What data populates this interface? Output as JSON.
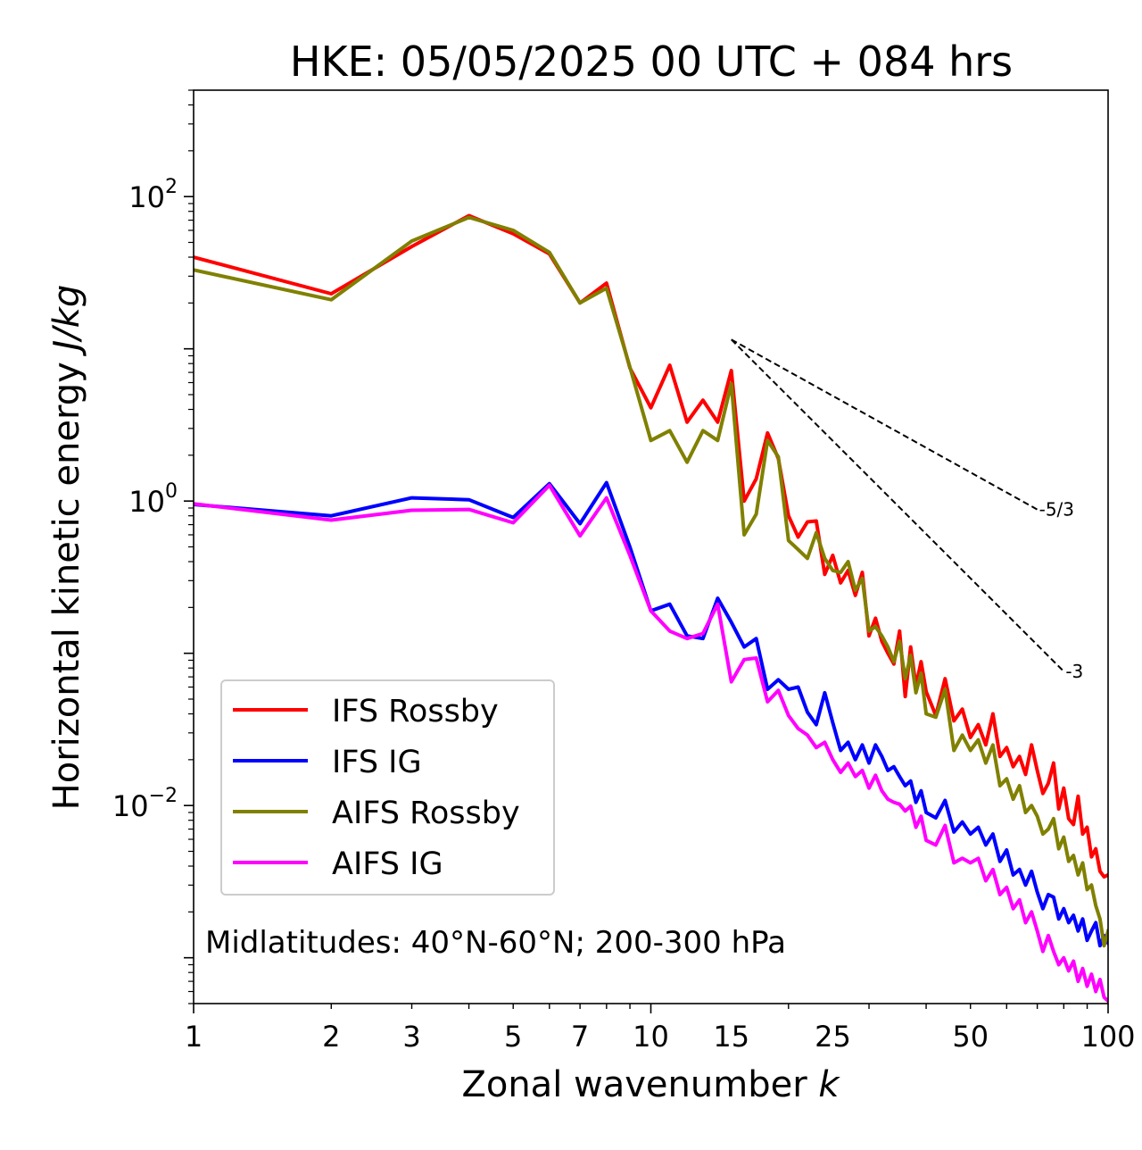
{
  "chart_data": {
    "type": "line",
    "title": "HKE: 05/05/2025 00 UTC + 084 hrs",
    "xlabel": "Zonal wavenumber",
    "xlabel_var": "k",
    "ylabel": "Horizontal kinetic energy",
    "ylabel_unit": "J/kg",
    "x_scale": "log",
    "y_scale": "log",
    "xlim": [
      1,
      100
    ],
    "ylim": [
      0.0005,
      500
    ],
    "x_ticks": [
      1,
      2,
      3,
      5,
      7,
      10,
      15,
      25,
      50,
      100
    ],
    "x_tick_labels": [
      "1",
      "2",
      "3",
      "5",
      "7",
      "10",
      "15",
      "25",
      "50",
      "100"
    ],
    "y_ticks": [
      0.01,
      1,
      100
    ],
    "y_tick_labels": [
      {
        "base": "10",
        "exp": "−2"
      },
      {
        "base": "10",
        "exp": "0"
      },
      {
        "base": "10",
        "exp": "2"
      }
    ],
    "grid": false,
    "legend_position": "lower-left",
    "annotation": "Midlatitudes: 40°N-60°N; 200-300 hPa",
    "reference_slopes": [
      {
        "label": "-5/3",
        "exponent": -1.6667,
        "x": [
          15,
          70
        ],
        "y": [
          11.5,
          0.88
        ]
      },
      {
        "label": "-3",
        "exponent": -3,
        "x": [
          15,
          80
        ],
        "y": [
          11.5,
          0.076
        ]
      }
    ],
    "series": [
      {
        "name": "IFS Rossby",
        "color": "#ff0000",
        "points": [
          [
            1,
            40
          ],
          [
            2,
            23
          ],
          [
            3,
            47
          ],
          [
            4,
            75
          ],
          [
            5,
            57
          ],
          [
            6,
            42
          ],
          [
            7,
            20
          ],
          [
            8,
            27
          ],
          [
            9,
            7.5
          ],
          [
            10,
            4.1
          ],
          [
            11,
            7.8
          ],
          [
            12,
            3.3
          ],
          [
            13,
            4.6
          ],
          [
            14,
            3.3
          ],
          [
            15,
            7.2
          ],
          [
            16,
            1.0
          ],
          [
            17,
            1.4
          ],
          [
            18,
            2.8
          ],
          [
            19,
            1.9
          ],
          [
            20,
            0.8
          ],
          [
            21,
            0.58
          ],
          [
            22,
            0.73
          ],
          [
            23,
            0.74
          ],
          [
            24,
            0.33
          ],
          [
            25,
            0.44
          ],
          [
            26,
            0.29
          ],
          [
            27,
            0.35
          ],
          [
            28,
            0.24
          ],
          [
            29,
            0.34
          ],
          [
            30,
            0.13
          ],
          [
            31,
            0.17
          ],
          [
            32,
            0.12
          ],
          [
            33,
            0.1
          ],
          [
            34,
            0.085
          ],
          [
            35,
            0.14
          ],
          [
            36,
            0.052
          ],
          [
            37,
            0.11
          ],
          [
            38,
            0.061
          ],
          [
            39,
            0.088
          ],
          [
            40,
            0.056
          ],
          [
            42,
            0.039
          ],
          [
            44,
            0.068
          ],
          [
            46,
            0.036
          ],
          [
            48,
            0.043
          ],
          [
            50,
            0.028
          ],
          [
            52,
            0.034
          ],
          [
            54,
            0.025
          ],
          [
            56,
            0.04
          ],
          [
            58,
            0.021
          ],
          [
            60,
            0.024
          ],
          [
            62,
            0.018
          ],
          [
            64,
            0.021
          ],
          [
            66,
            0.016
          ],
          [
            68,
            0.025
          ],
          [
            70,
            0.017
          ],
          [
            72,
            0.012
          ],
          [
            74,
            0.014
          ],
          [
            76,
            0.019
          ],
          [
            78,
            0.0095
          ],
          [
            80,
            0.013
          ],
          [
            82,
            0.0082
          ],
          [
            84,
            0.0075
          ],
          [
            86,
            0.0115
          ],
          [
            88,
            0.0065
          ],
          [
            90,
            0.0072
          ],
          [
            92,
            0.0046
          ],
          [
            94,
            0.0052
          ],
          [
            96,
            0.0037
          ],
          [
            98,
            0.0034
          ],
          [
            100,
            0.0035
          ]
        ]
      },
      {
        "name": "IFS IG",
        "color": "#0000ff",
        "points": [
          [
            1,
            0.95
          ],
          [
            2,
            0.8
          ],
          [
            3,
            1.05
          ],
          [
            4,
            1.02
          ],
          [
            5,
            0.78
          ],
          [
            6,
            1.3
          ],
          [
            7,
            0.71
          ],
          [
            8,
            1.32
          ],
          [
            9,
            0.5
          ],
          [
            10,
            0.19
          ],
          [
            11,
            0.21
          ],
          [
            12,
            0.13
          ],
          [
            13,
            0.125
          ],
          [
            14,
            0.23
          ],
          [
            15,
            0.16
          ],
          [
            16,
            0.11
          ],
          [
            17,
            0.125
          ],
          [
            18,
            0.058
          ],
          [
            19,
            0.067
          ],
          [
            20,
            0.058
          ],
          [
            21,
            0.06
          ],
          [
            22,
            0.041
          ],
          [
            23,
            0.034
          ],
          [
            24,
            0.055
          ],
          [
            25,
            0.035
          ],
          [
            26,
            0.023
          ],
          [
            27,
            0.026
          ],
          [
            28,
            0.02
          ],
          [
            29,
            0.025
          ],
          [
            30,
            0.019
          ],
          [
            31,
            0.025
          ],
          [
            32,
            0.021
          ],
          [
            33,
            0.017
          ],
          [
            34,
            0.018
          ],
          [
            35,
            0.0155
          ],
          [
            36,
            0.0135
          ],
          [
            37,
            0.0145
          ],
          [
            38,
            0.0105
          ],
          [
            39,
            0.0125
          ],
          [
            40,
            0.009
          ],
          [
            42,
            0.0083
          ],
          [
            44,
            0.0108
          ],
          [
            46,
            0.0067
          ],
          [
            48,
            0.0078
          ],
          [
            50,
            0.0065
          ],
          [
            52,
            0.0072
          ],
          [
            54,
            0.0055
          ],
          [
            56,
            0.0065
          ],
          [
            58,
            0.0043
          ],
          [
            60,
            0.0051
          ],
          [
            62,
            0.0035
          ],
          [
            64,
            0.0038
          ],
          [
            66,
            0.003
          ],
          [
            68,
            0.0037
          ],
          [
            70,
            0.0027
          ],
          [
            72,
            0.0021
          ],
          [
            74,
            0.0026
          ],
          [
            76,
            0.0025
          ],
          [
            78,
            0.0018
          ],
          [
            80,
            0.0021
          ],
          [
            82,
            0.0017
          ],
          [
            84,
            0.0019
          ],
          [
            86,
            0.0015
          ],
          [
            88,
            0.0018
          ],
          [
            90,
            0.0013
          ],
          [
            92,
            0.0015
          ],
          [
            94,
            0.0017
          ],
          [
            96,
            0.0012
          ],
          [
            98,
            0.0014
          ],
          [
            100,
            0.00125
          ]
        ]
      },
      {
        "name": "AIFS Rossby",
        "color": "#808000",
        "points": [
          [
            1,
            33
          ],
          [
            2,
            21
          ],
          [
            3,
            51
          ],
          [
            4,
            73
          ],
          [
            5,
            60
          ],
          [
            6,
            43
          ],
          [
            7,
            20
          ],
          [
            8,
            25
          ],
          [
            9,
            7.6
          ],
          [
            10,
            2.5
          ],
          [
            11,
            2.9
          ],
          [
            12,
            1.8
          ],
          [
            13,
            2.9
          ],
          [
            14,
            2.5
          ],
          [
            15,
            5.9
          ],
          [
            16,
            0.6
          ],
          [
            17,
            0.82
          ],
          [
            18,
            2.5
          ],
          [
            19,
            1.95
          ],
          [
            20,
            0.55
          ],
          [
            21,
            0.48
          ],
          [
            22,
            0.42
          ],
          [
            23,
            0.62
          ],
          [
            24,
            0.42
          ],
          [
            25,
            0.35
          ],
          [
            26,
            0.34
          ],
          [
            27,
            0.4
          ],
          [
            28,
            0.26
          ],
          [
            29,
            0.31
          ],
          [
            30,
            0.14
          ],
          [
            31,
            0.15
          ],
          [
            32,
            0.13
          ],
          [
            33,
            0.11
          ],
          [
            34,
            0.088
          ],
          [
            35,
            0.12
          ],
          [
            36,
            0.068
          ],
          [
            37,
            0.097
          ],
          [
            38,
            0.055
          ],
          [
            39,
            0.074
          ],
          [
            40,
            0.04
          ],
          [
            42,
            0.038
          ],
          [
            44,
            0.058
          ],
          [
            46,
            0.023
          ],
          [
            48,
            0.029
          ],
          [
            50,
            0.023
          ],
          [
            52,
            0.027
          ],
          [
            54,
            0.019
          ],
          [
            56,
            0.025
          ],
          [
            58,
            0.0135
          ],
          [
            60,
            0.015
          ],
          [
            62,
            0.011
          ],
          [
            64,
            0.0135
          ],
          [
            66,
            0.009
          ],
          [
            68,
            0.01
          ],
          [
            70,
            0.0085
          ],
          [
            72,
            0.0065
          ],
          [
            74,
            0.007
          ],
          [
            76,
            0.0082
          ],
          [
            78,
            0.0052
          ],
          [
            80,
            0.0062
          ],
          [
            82,
            0.0043
          ],
          [
            84,
            0.0047
          ],
          [
            86,
            0.0035
          ],
          [
            88,
            0.0042
          ],
          [
            90,
            0.0028
          ],
          [
            92,
            0.003
          ],
          [
            94,
            0.0022
          ],
          [
            96,
            0.0018
          ],
          [
            98,
            0.0012
          ],
          [
            100,
            0.0015
          ]
        ]
      },
      {
        "name": "AIFS IG",
        "color": "#ff00ff",
        "points": [
          [
            1,
            0.96
          ],
          [
            2,
            0.75
          ],
          [
            3,
            0.87
          ],
          [
            4,
            0.88
          ],
          [
            5,
            0.72
          ],
          [
            6,
            1.27
          ],
          [
            7,
            0.59
          ],
          [
            8,
            1.05
          ],
          [
            9,
            0.44
          ],
          [
            10,
            0.19
          ],
          [
            11,
            0.14
          ],
          [
            12,
            0.125
          ],
          [
            13,
            0.135
          ],
          [
            14,
            0.21
          ],
          [
            15,
            0.065
          ],
          [
            16,
            0.091
          ],
          [
            17,
            0.093
          ],
          [
            18,
            0.048
          ],
          [
            19,
            0.057
          ],
          [
            20,
            0.039
          ],
          [
            21,
            0.032
          ],
          [
            22,
            0.029
          ],
          [
            23,
            0.024
          ],
          [
            24,
            0.026
          ],
          [
            25,
            0.02
          ],
          [
            26,
            0.0165
          ],
          [
            27,
            0.019
          ],
          [
            28,
            0.0155
          ],
          [
            29,
            0.017
          ],
          [
            30,
            0.013
          ],
          [
            31,
            0.0158
          ],
          [
            32,
            0.0125
          ],
          [
            33,
            0.011
          ],
          [
            34,
            0.0105
          ],
          [
            35,
            0.0102
          ],
          [
            36,
            0.0092
          ],
          [
            37,
            0.0099
          ],
          [
            38,
            0.0072
          ],
          [
            39,
            0.0085
          ],
          [
            40,
            0.0059
          ],
          [
            42,
            0.0055
          ],
          [
            44,
            0.0074
          ],
          [
            46,
            0.0042
          ],
          [
            48,
            0.0045
          ],
          [
            50,
            0.0042
          ],
          [
            52,
            0.0045
          ],
          [
            54,
            0.0032
          ],
          [
            56,
            0.0038
          ],
          [
            58,
            0.0026
          ],
          [
            60,
            0.0029
          ],
          [
            62,
            0.0021
          ],
          [
            64,
            0.0024
          ],
          [
            66,
            0.0017
          ],
          [
            68,
            0.002
          ],
          [
            70,
            0.0015
          ],
          [
            72,
            0.0011
          ],
          [
            74,
            0.0014
          ],
          [
            76,
            0.0011
          ],
          [
            78,
            0.0009
          ],
          [
            80,
            0.001
          ],
          [
            82,
            0.00082
          ],
          [
            84,
            0.00095
          ],
          [
            86,
            0.0007
          ],
          [
            88,
            0.00085
          ],
          [
            90,
            0.00065
          ],
          [
            92,
            0.00078
          ],
          [
            94,
            0.0006
          ],
          [
            96,
            0.00072
          ],
          [
            98,
            0.00055
          ],
          [
            100,
            0.00052
          ]
        ]
      }
    ]
  }
}
